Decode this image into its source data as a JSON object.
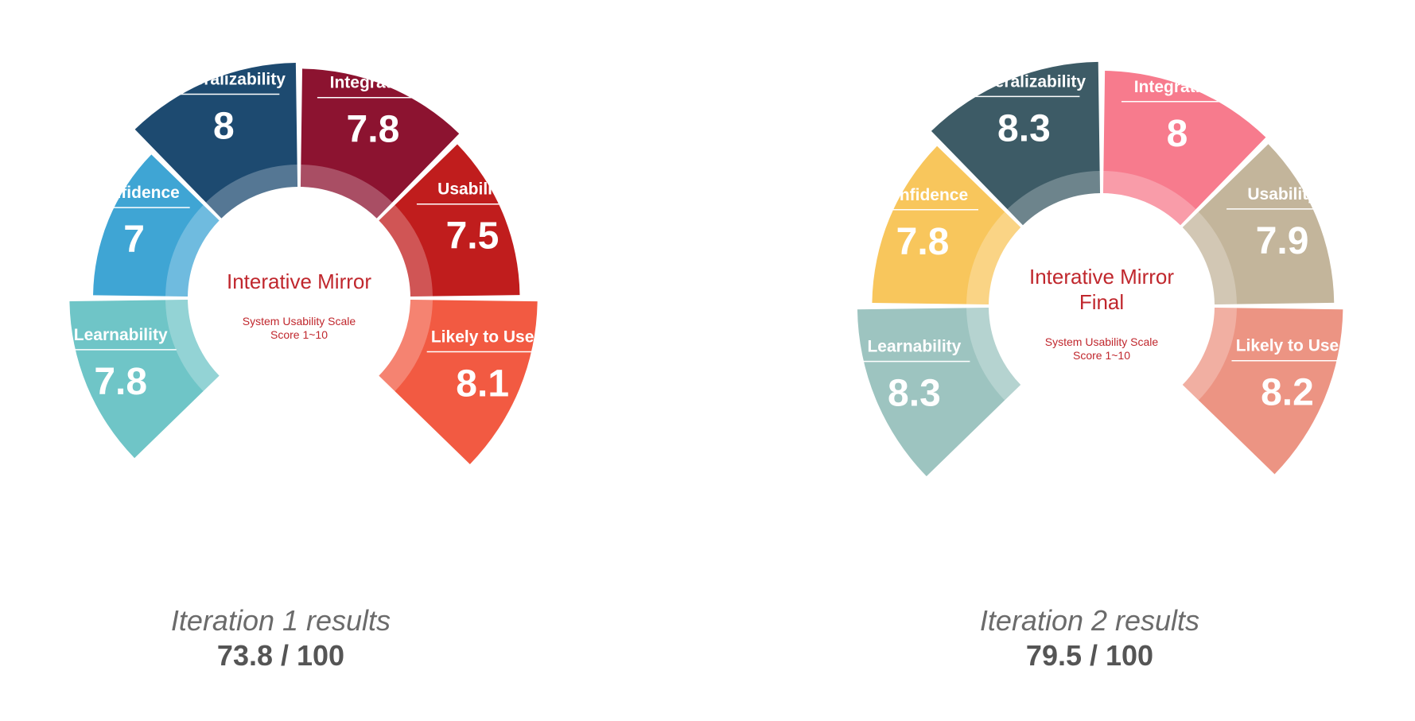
{
  "chart_data": [
    {
      "type": "radial-bar",
      "center_title": [
        "Interative Mirror"
      ],
      "center_subtitle": [
        "System Usability Scale",
        "Score 1~10"
      ],
      "caption": "Iteration 1 results",
      "score": "73.8 / 100",
      "categories": [
        "Learnability",
        "Confidence",
        "Generalizability",
        "Integration",
        "Usability",
        "Likely to Use"
      ],
      "values": [
        7.8,
        7,
        8,
        7.8,
        7.5,
        8.1
      ],
      "colors": [
        "#6fc5c7",
        "#3fa5d4",
        "#1d4a70",
        "#8c1330",
        "#c01d1d",
        "#f25a42"
      ]
    },
    {
      "type": "radial-bar",
      "center_title": [
        "Interative Mirror",
        "Final"
      ],
      "center_subtitle": [
        "System Usability Scale",
        "Score 1~10"
      ],
      "caption": "Iteration 2 results",
      "score": "79.5 / 100",
      "categories": [
        "Learnability",
        "Confidence",
        "Generalizability",
        "Integration",
        "Usability",
        "Likely to Use"
      ],
      "values": [
        8.3,
        7.8,
        8.3,
        8,
        7.9,
        8.2
      ],
      "colors": [
        "#9dc4c0",
        "#f8c65c",
        "#3d5b66",
        "#f77b8d",
        "#c3b59b",
        "#ec9483"
      ]
    }
  ]
}
